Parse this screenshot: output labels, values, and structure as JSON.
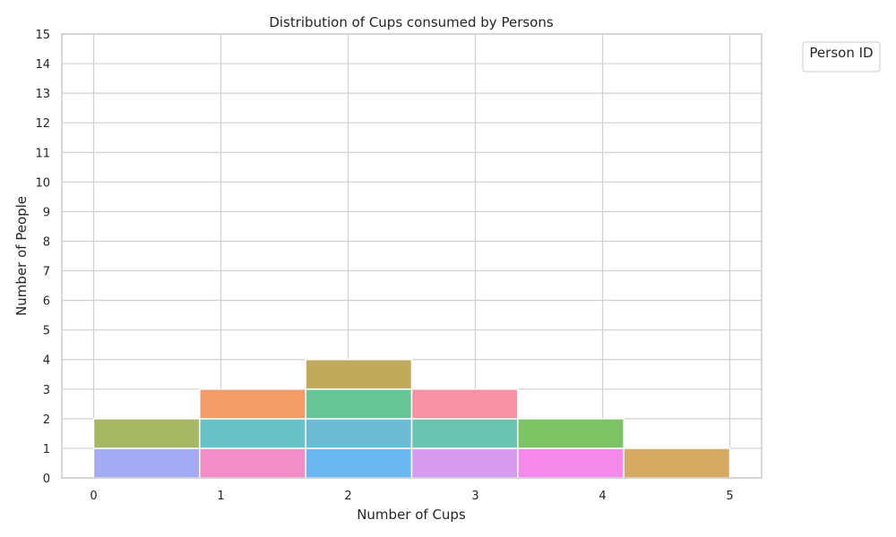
{
  "chart_data": {
    "type": "bar",
    "title": "Distribution of Cups consumed by Persons",
    "xlabel": "Number of Cups",
    "ylabel": "Number of People",
    "xlim": [
      -0.25,
      5.25
    ],
    "ylim": [
      0,
      15
    ],
    "xticks": [
      "0",
      "1",
      "2",
      "3",
      "4",
      "5"
    ],
    "yticks": [
      "0",
      "1",
      "2",
      "3",
      "4",
      "5",
      "6",
      "7",
      "8",
      "9",
      "10",
      "11",
      "12",
      "13",
      "14",
      "15"
    ],
    "bin_edges": [
      0,
      0.8333,
      1.6667,
      2.5,
      3.3333,
      4.1667,
      5.0
    ],
    "stacked": true,
    "grid": true,
    "legend": {
      "title": "Person ID",
      "placement": "outside top-right"
    },
    "segments": [
      {
        "bin": 0,
        "bottom": 0,
        "count": 1,
        "color": "#a5aaf4"
      },
      {
        "bin": 0,
        "bottom": 1,
        "count": 1,
        "color": "#a7b865"
      },
      {
        "bin": 1,
        "bottom": 0,
        "count": 1,
        "color": "#f28dc7"
      },
      {
        "bin": 1,
        "bottom": 1,
        "count": 1,
        "color": "#68c3c6"
      },
      {
        "bin": 1,
        "bottom": 2,
        "count": 1,
        "color": "#f49c68"
      },
      {
        "bin": 2,
        "bottom": 0,
        "count": 1,
        "color": "#6bb7ef"
      },
      {
        "bin": 2,
        "bottom": 1,
        "count": 1,
        "color": "#6cbad3"
      },
      {
        "bin": 2,
        "bottom": 2,
        "count": 1,
        "color": "#66c497"
      },
      {
        "bin": 2,
        "bottom": 3,
        "count": 1,
        "color": "#c2aa5d"
      },
      {
        "bin": 3,
        "bottom": 0,
        "count": 1,
        "color": "#d79bf0"
      },
      {
        "bin": 3,
        "bottom": 1,
        "count": 1,
        "color": "#6bc4b0"
      },
      {
        "bin": 3,
        "bottom": 2,
        "count": 1,
        "color": "#f692a3"
      },
      {
        "bin": 4,
        "bottom": 0,
        "count": 1,
        "color": "#f38ae9"
      },
      {
        "bin": 4,
        "bottom": 1,
        "count": 1,
        "color": "#7dc366"
      },
      {
        "bin": 5,
        "bottom": 0,
        "count": 1,
        "color": "#d4aa63"
      }
    ]
  },
  "colors": {
    "grid": "#d0d0d0",
    "spine": "#cccccc",
    "text": "#262626",
    "bar_edge": "#ffffff"
  }
}
